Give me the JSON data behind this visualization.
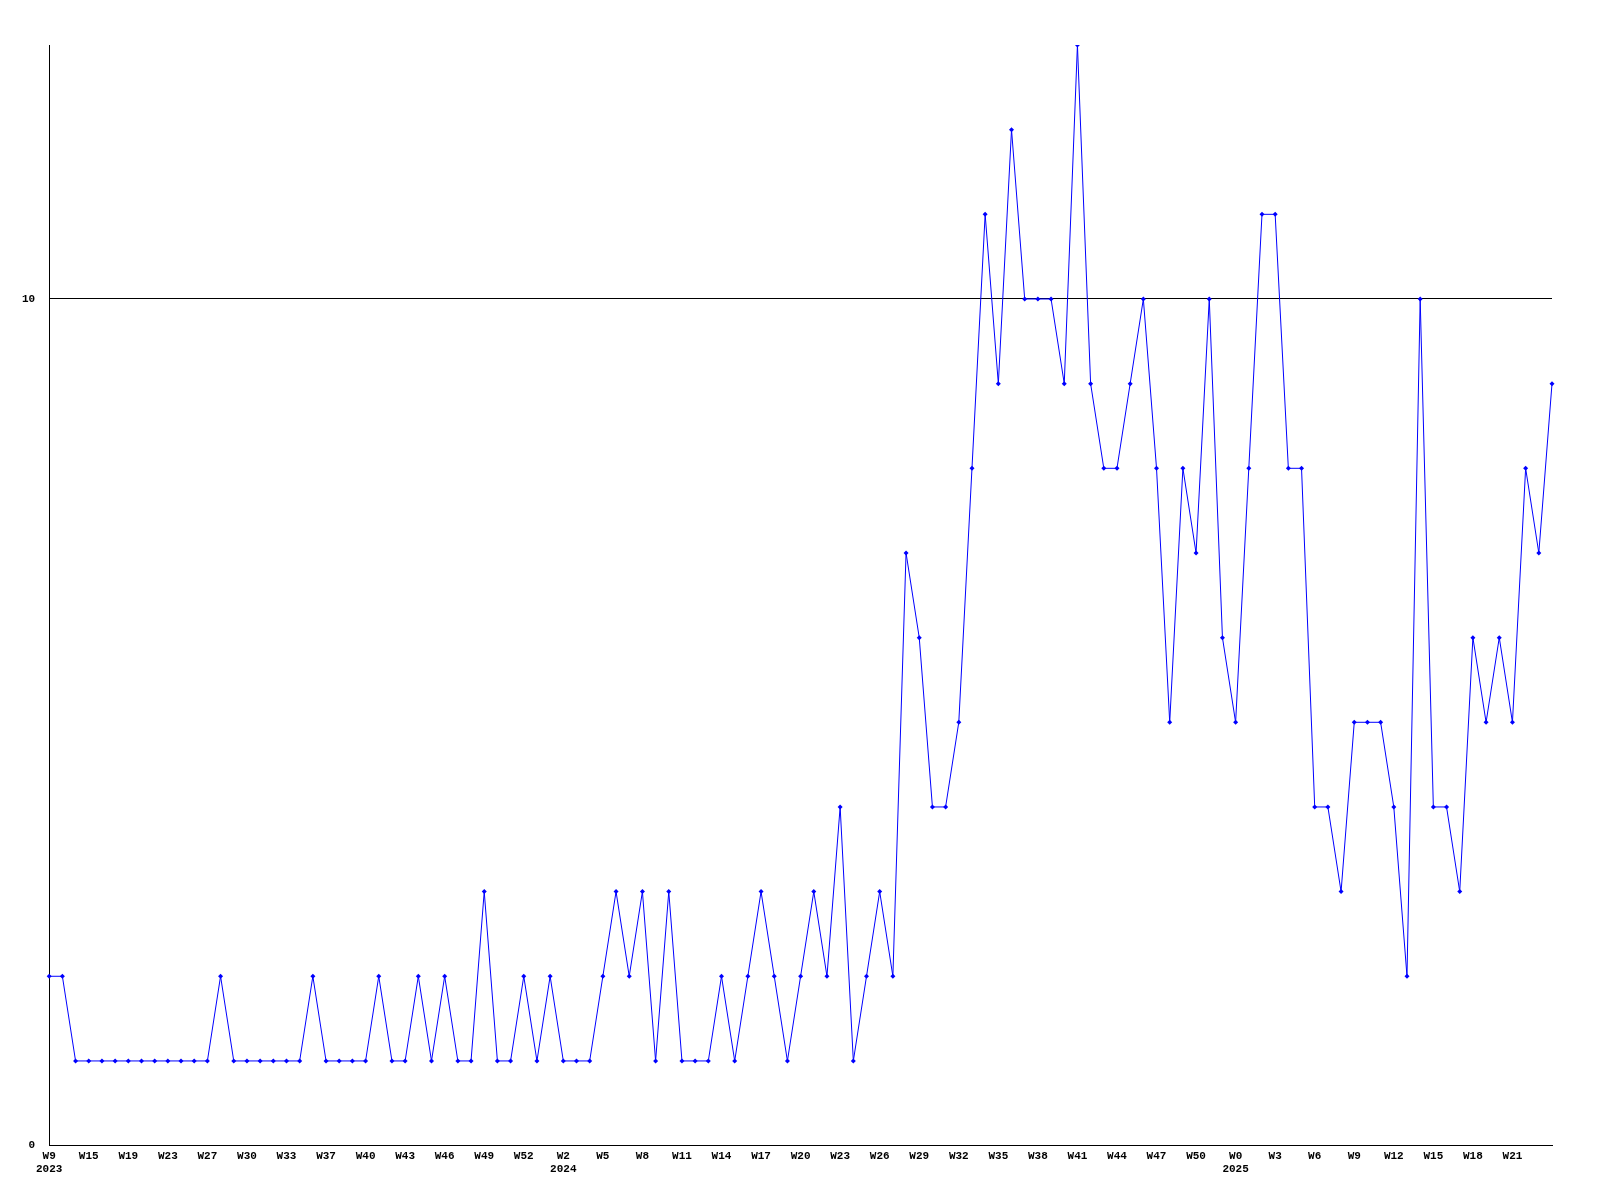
{
  "chart_data": {
    "type": "line",
    "categories": [
      "W9\n2023",
      null,
      null,
      "W15",
      null,
      null,
      "W19",
      null,
      null,
      "W23",
      null,
      null,
      "W27",
      null,
      null,
      "W30",
      null,
      null,
      "W33",
      null,
      null,
      "W37",
      null,
      null,
      "W40",
      null,
      null,
      "W43",
      null,
      null,
      "W46",
      null,
      null,
      "W49",
      null,
      null,
      "W52",
      null,
      null,
      "W2\n2024",
      null,
      null,
      "W5",
      null,
      null,
      "W8",
      null,
      null,
      "W11",
      null,
      null,
      "W14",
      null,
      null,
      "W17",
      null,
      null,
      "W20",
      null,
      null,
      "W23",
      null,
      null,
      "W26",
      null,
      null,
      "W29",
      null,
      null,
      "W32",
      null,
      null,
      "W35",
      null,
      null,
      "W38",
      null,
      null,
      "W41",
      null,
      null,
      "W44",
      null,
      null,
      "W47",
      null,
      null,
      "W50",
      null,
      null,
      "W0\n2025",
      null,
      null,
      "W3",
      null,
      null,
      "W6",
      null,
      null,
      "W9",
      null,
      null,
      "W12",
      null,
      null,
      "W15",
      null,
      null,
      "W18",
      null,
      null,
      "W21",
      null,
      null,
      null
    ],
    "series": [
      {
        "color": "#0000ff",
        "values": [
          2,
          2,
          1,
          1,
          1,
          1,
          1,
          1,
          1,
          1,
          1,
          1,
          1,
          2,
          1,
          1,
          1,
          1,
          1,
          1,
          2,
          1,
          1,
          1,
          1,
          2,
          1,
          1,
          2,
          1,
          2,
          1,
          1,
          3,
          1,
          1,
          2,
          1,
          2,
          1,
          1,
          1,
          2,
          3,
          2,
          3,
          1,
          3,
          1,
          1,
          1,
          2,
          1,
          2,
          3,
          2,
          1,
          2,
          3,
          2,
          4,
          1,
          2,
          3,
          2,
          7,
          6,
          4,
          4,
          5,
          8,
          11,
          9,
          12,
          10,
          10,
          10,
          9,
          13,
          9,
          8,
          8,
          9,
          10,
          8,
          5,
          8,
          7,
          10,
          6,
          5,
          8,
          11,
          11,
          8,
          8,
          4,
          4,
          3,
          5,
          5,
          5,
          4,
          2,
          10,
          4,
          4,
          3,
          6,
          5,
          6,
          5,
          8,
          7,
          9
        ]
      }
    ],
    "ylim": [
      0,
      13
    ],
    "yticks": [
      0,
      10
    ],
    "grid": "y",
    "marker": "diamond",
    "line_style": "solid"
  }
}
